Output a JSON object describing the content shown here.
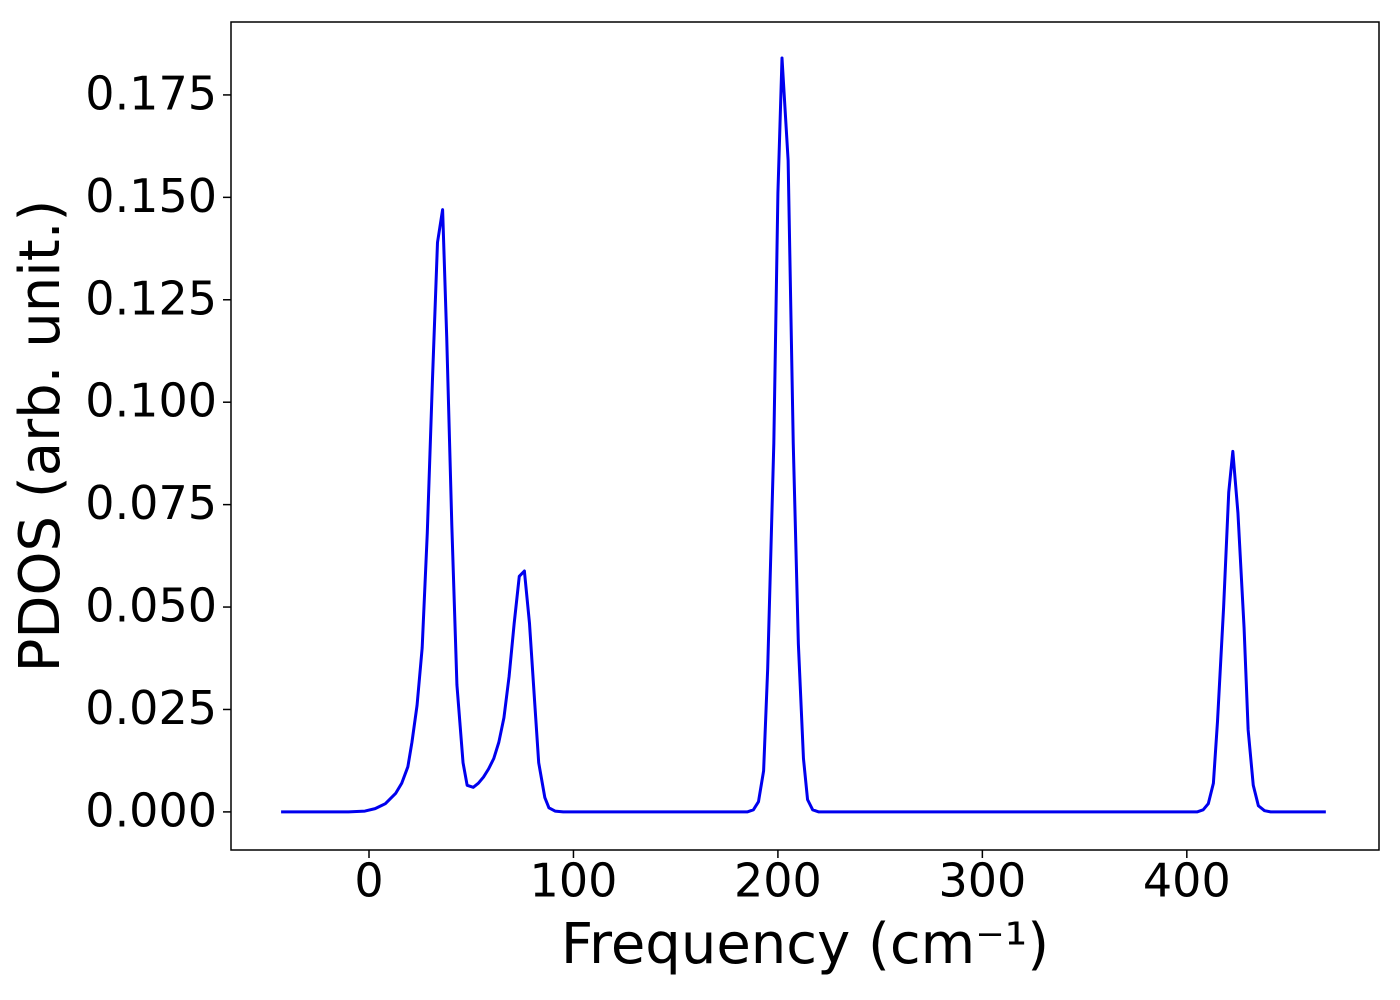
{
  "chart_data": {
    "type": "line",
    "x_label": "Frequency (cm⁻¹)",
    "y_label": "PDOS (arb. unit.)",
    "x": [
      -43,
      -10,
      -2,
      3,
      8,
      13,
      16,
      19,
      21,
      23.5,
      26,
      28.5,
      31,
      33.5,
      36,
      38,
      40.5,
      43,
      46,
      48,
      51,
      53.5,
      56,
      58.5,
      61,
      63.5,
      66,
      68.5,
      71,
      73.5,
      76,
      78.5,
      81,
      83,
      86,
      88,
      91,
      95,
      185,
      188,
      190.5,
      193,
      195,
      198,
      200,
      202,
      205,
      207.5,
      210,
      212.5,
      214.5,
      217,
      220,
      405,
      408,
      410.5,
      413,
      415,
      418,
      420.5,
      422.5,
      425,
      428,
      430,
      432.5,
      435,
      438,
      441,
      468
    ],
    "values": [
      0,
      0,
      0.0002,
      0.0008,
      0.002,
      0.0045,
      0.007,
      0.011,
      0.017,
      0.026,
      0.04,
      0.068,
      0.105,
      0.139,
      0.147,
      0.116,
      0.07,
      0.031,
      0.012,
      0.0065,
      0.006,
      0.007,
      0.0085,
      0.0105,
      0.013,
      0.017,
      0.023,
      0.033,
      0.046,
      0.0575,
      0.0588,
      0.046,
      0.027,
      0.012,
      0.0035,
      0.001,
      0.0002,
      0,
      0,
      0.0005,
      0.0025,
      0.01,
      0.035,
      0.09,
      0.151,
      0.184,
      0.159,
      0.09,
      0.041,
      0.013,
      0.003,
      0.0005,
      0,
      0,
      0.0005,
      0.002,
      0.007,
      0.022,
      0.05,
      0.078,
      0.088,
      0.073,
      0.045,
      0.02,
      0.0065,
      0.0015,
      0.0003,
      0,
      0
    ],
    "color": "#0000ee",
    "xlim": [
      -67.5,
      494
    ],
    "ylim": [
      -0.0093,
      0.1928
    ],
    "xticks": [
      0,
      100,
      200,
      300,
      400
    ],
    "yticks": [
      {
        "value": 0,
        "label": "0.000"
      },
      {
        "value": 0.025,
        "label": "0.025"
      },
      {
        "value": 0.05,
        "label": "0.050"
      },
      {
        "value": 0.075,
        "label": "0.075"
      },
      {
        "value": 0.1,
        "label": "0.100"
      },
      {
        "value": 0.125,
        "label": "0.125"
      },
      {
        "value": 0.15,
        "label": "0.150"
      },
      {
        "value": 0.175,
        "label": "0.175"
      }
    ],
    "grid": false
  }
}
